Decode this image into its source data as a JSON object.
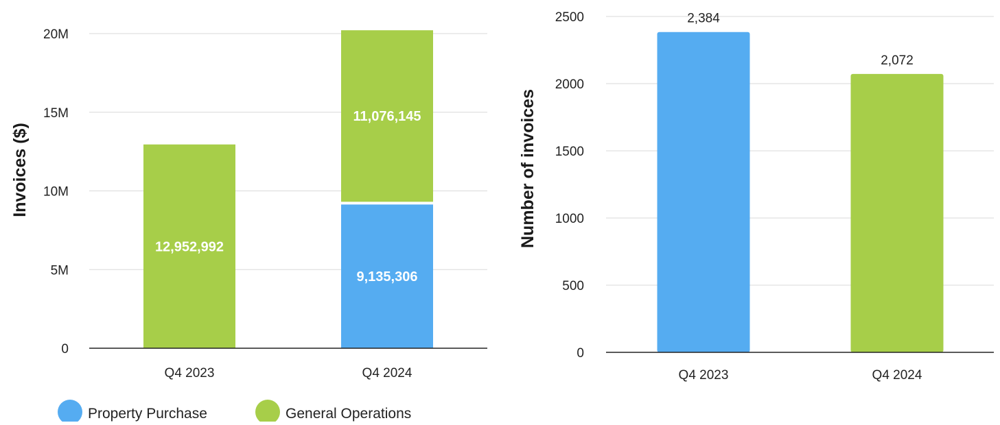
{
  "chart_data": [
    {
      "type": "bar",
      "stacked": true,
      "categories": [
        "Q4 2023",
        "Q4 2024"
      ],
      "series": [
        {
          "name": "Property Purchase",
          "color": "#55acf1",
          "values": [
            null,
            9135306
          ]
        },
        {
          "name": "General Operations",
          "color": "#a7ce49",
          "values": [
            12952992,
            11076145
          ]
        }
      ],
      "data_labels": [
        [
          "",
          "9,135,306"
        ],
        [
          "12,952,992",
          "11,076,145"
        ]
      ],
      "title": "",
      "xlabel": "",
      "ylabel": "Invoices ($)",
      "ylim": [
        0,
        20000000
      ],
      "yticks": [
        0,
        5000000,
        10000000,
        15000000,
        20000000
      ],
      "ytick_labels": [
        "0",
        "5M",
        "10M",
        "15M",
        "20M"
      ],
      "grid": true,
      "legend": {
        "position": "bottom-left",
        "entries": [
          "Property Purchase",
          "General Operations"
        ]
      }
    },
    {
      "type": "bar",
      "categories": [
        "Q4 2023",
        "Q4 2024"
      ],
      "values": [
        2384,
        2072
      ],
      "bar_colors": [
        "#55acf1",
        "#a7ce49"
      ],
      "data_labels": [
        "2,384",
        "2,072"
      ],
      "title": "",
      "xlabel": "",
      "ylabel": "Number of invoices",
      "ylim": [
        0,
        2500
      ],
      "yticks": [
        0,
        500,
        1000,
        1500,
        2000,
        2500
      ],
      "ytick_labels": [
        "0",
        "500",
        "1000",
        "1500",
        "2000",
        "2500"
      ],
      "grid": true
    }
  ]
}
